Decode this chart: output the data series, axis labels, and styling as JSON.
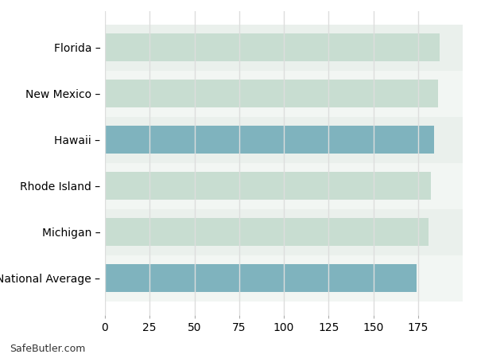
{
  "categories": [
    "Florida",
    "New Mexico",
    "Hawaii",
    "Rhode Island",
    "Michigan",
    "National Average"
  ],
  "values": [
    187,
    186,
    184,
    182,
    181,
    174
  ],
  "bar_colors": [
    "#c8ddd1",
    "#c8ddd1",
    "#7fb3be",
    "#c8ddd1",
    "#c8ddd1",
    "#7fb3be"
  ],
  "xlim": [
    0,
    200
  ],
  "xticks": [
    0,
    25,
    50,
    75,
    100,
    125,
    150,
    175
  ],
  "background_color": "#ffffff",
  "axes_facecolor": "#ffffff",
  "grid_color": "#dddddd",
  "bar_edge_color": "none",
  "tick_label_fontsize": 10,
  "watermark": "SafeButler.com",
  "watermark_fontsize": 9,
  "bar_height": 0.6,
  "label_suffix": " –"
}
